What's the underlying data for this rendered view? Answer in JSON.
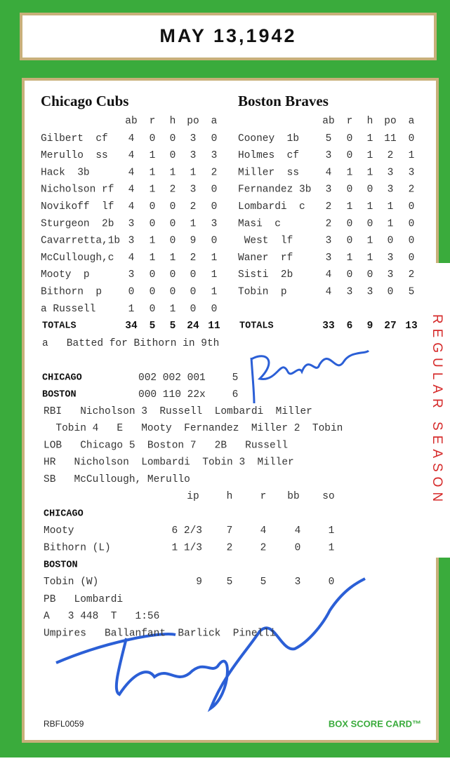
{
  "header": {
    "date": "MAY 13,1942"
  },
  "side_label": "REGULAR SEASON",
  "columns": [
    "ab",
    "r",
    "h",
    "po",
    "a"
  ],
  "teams": [
    {
      "name": "Chicago Cubs",
      "rows": [
        {
          "player": "Gilbert  cf",
          "stats": [
            4,
            0,
            0,
            3,
            0
          ]
        },
        {
          "player": "Merullo  ss",
          "stats": [
            4,
            1,
            0,
            3,
            3
          ]
        },
        {
          "player": "Hack  3b",
          "stats": [
            4,
            1,
            1,
            1,
            2
          ]
        },
        {
          "player": "Nicholson rf",
          "stats": [
            4,
            1,
            2,
            3,
            0
          ]
        },
        {
          "player": "Novikoff  lf",
          "stats": [
            4,
            0,
            0,
            2,
            0
          ]
        },
        {
          "player": "Sturgeon  2b",
          "stats": [
            3,
            0,
            0,
            1,
            3
          ]
        },
        {
          "player": "Cavarretta,1b",
          "stats": [
            3,
            1,
            0,
            9,
            0
          ]
        },
        {
          "player": "McCullough,c",
          "stats": [
            4,
            1,
            1,
            2,
            1
          ]
        },
        {
          "player": "Mooty  p",
          "stats": [
            3,
            0,
            0,
            0,
            1
          ]
        },
        {
          "player": "Bithorn  p",
          "stats": [
            0,
            0,
            0,
            0,
            1
          ]
        },
        {
          "player": "a Russell",
          "stats": [
            1,
            0,
            1,
            0,
            0
          ]
        }
      ],
      "totals_label": "TOTALS",
      "totals": [
        34,
        5,
        5,
        24,
        11
      ]
    },
    {
      "name": "Boston Braves",
      "rows": [
        {
          "player": "Cooney  1b",
          "stats": [
            5,
            0,
            1,
            11,
            0
          ]
        },
        {
          "player": "Holmes  cf",
          "stats": [
            3,
            0,
            1,
            2,
            1
          ]
        },
        {
          "player": "Miller  ss",
          "stats": [
            4,
            1,
            1,
            3,
            3
          ]
        },
        {
          "player": "Fernandez 3b",
          "stats": [
            3,
            0,
            0,
            3,
            2
          ]
        },
        {
          "player": "Lombardi  c",
          "stats": [
            2,
            1,
            1,
            1,
            0
          ]
        },
        {
          "player": "Masi  c",
          "stats": [
            2,
            0,
            0,
            1,
            0
          ]
        },
        {
          "player": " West  lf",
          "stats": [
            3,
            0,
            1,
            0,
            0
          ]
        },
        {
          "player": "Waner  rf",
          "stats": [
            3,
            1,
            1,
            3,
            0
          ]
        },
        {
          "player": "Sisti  2b",
          "stats": [
            4,
            0,
            0,
            3,
            2
          ]
        },
        {
          "player": "Tobin  p",
          "stats": [
            4,
            3,
            3,
            0,
            5
          ]
        }
      ],
      "totals_label": "TOTALS",
      "totals": [
        33,
        6,
        9,
        27,
        13
      ]
    }
  ],
  "note": "a   Batted for Bithorn in 9th",
  "line_score": [
    {
      "team": "CHICAGO",
      "innings": "002 002 001",
      "runs": 5
    },
    {
      "team": "BOSTON",
      "innings": "000 110 22x",
      "runs": 6
    }
  ],
  "game_notes": [
    "RBI   Nicholson 3  Russell  Lombardi  Miller",
    "  Tobin 4   E   Mooty  Fernandez  Miller 2  Tobin",
    "LOB   Chicago 5  Boston 7   2B   Russell",
    "HR   Nicholson  Lombardi  Tobin 3  Miller",
    "SB   McCullough, Merullo"
  ],
  "pitching": {
    "columns": [
      "ip",
      "h",
      "r",
      "bb",
      "so"
    ],
    "groups": [
      {
        "team": "CHICAGO",
        "pitchers": [
          {
            "name": "Mooty",
            "stats": [
              "6 2/3",
              7,
              4,
              4,
              1
            ]
          },
          {
            "name": "Bithorn (L)",
            "stats": [
              "1 1/3",
              2,
              2,
              0,
              1
            ]
          }
        ]
      },
      {
        "team": "BOSTON",
        "pitchers": [
          {
            "name": "Tobin (W)",
            "stats": [
              9,
              5,
              5,
              3,
              0
            ]
          }
        ]
      }
    ]
  },
  "misc_notes": [
    "PB   Lombardi",
    "A   3 448  T   1:56",
    "Umpires   Ballanfant  Barlick  Pinelli"
  ],
  "footer": {
    "card_id": "RBFL0059",
    "brand": "BOX SCORE CARD™"
  }
}
